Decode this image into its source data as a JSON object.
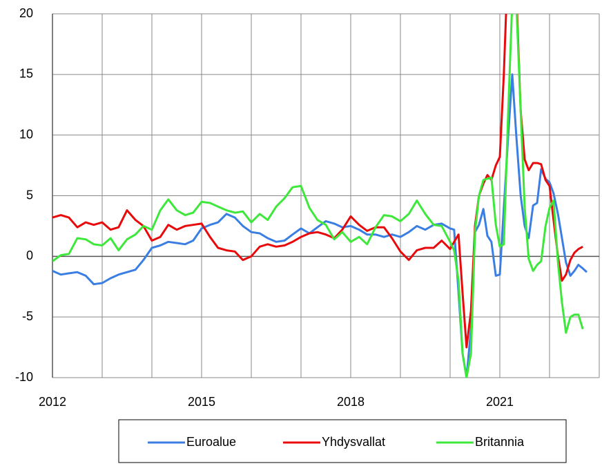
{
  "chart_data": {
    "type": "line",
    "x": [
      2012,
      2012.17,
      2012.33,
      2012.5,
      2012.67,
      2012.83,
      2013,
      2013.17,
      2013.33,
      2013.5,
      2013.67,
      2013.83,
      2014,
      2014.17,
      2014.33,
      2014.5,
      2014.67,
      2014.83,
      2015,
      2015.17,
      2015.33,
      2015.5,
      2015.67,
      2015.83,
      2016,
      2016.17,
      2016.33,
      2016.5,
      2016.67,
      2016.83,
      2017,
      2017.17,
      2017.33,
      2017.5,
      2017.67,
      2017.83,
      2018,
      2018.17,
      2018.33,
      2018.5,
      2018.67,
      2018.83,
      2019,
      2019.17,
      2019.33,
      2019.5,
      2019.67,
      2019.83,
      2020,
      2020.08,
      2020.17,
      2020.25,
      2020.33,
      2020.42,
      2020.5,
      2020.58,
      2020.67,
      2020.75,
      2020.83,
      2020.92,
      2021,
      2021.08,
      2021.17,
      2021.25,
      2021.33,
      2021.42,
      2021.5,
      2021.58,
      2021.67,
      2021.75,
      2021.83,
      2021.92,
      2022,
      2022.08,
      2022.17,
      2022.25,
      2022.33,
      2022.42,
      2022.5,
      2022.58,
      2022.67,
      2022.75
    ],
    "series": [
      {
        "name": "Euroalue",
        "color": "#3a7ee4",
        "values": [
          -1.2,
          -1.5,
          -1.4,
          -1.3,
          -1.6,
          -2.3,
          -2.2,
          -1.8,
          -1.5,
          -1.3,
          -1.1,
          -0.3,
          0.7,
          0.9,
          1.2,
          1.1,
          1.0,
          1.3,
          2.3,
          2.6,
          2.8,
          3.5,
          3.2,
          2.5,
          2.0,
          1.9,
          1.5,
          1.2,
          1.3,
          1.8,
          2.3,
          1.9,
          2.4,
          2.9,
          2.7,
          2.4,
          2.5,
          2.2,
          1.8,
          1.8,
          1.6,
          1.8,
          1.6,
          2.0,
          2.5,
          2.2,
          2.6,
          2.7,
          2.3,
          2.2,
          -3,
          -8,
          -10,
          -6,
          2.0,
          2.6,
          3.9,
          1.7,
          1.2,
          -1.6,
          -1.5,
          4,
          10,
          15,
          10,
          5,
          2.5,
          1.5,
          4.2,
          4.4,
          7.2,
          6.4,
          6.1,
          5.2,
          3.5,
          1.5,
          -0.5,
          -1.6,
          -1.2,
          -0.7,
          -1.0,
          -1.3
        ]
      },
      {
        "name": "Yhdysvallat",
        "color": "#e8090b",
        "values": [
          3.2,
          3.4,
          3.2,
          2.4,
          2.8,
          2.6,
          2.8,
          2.2,
          2.4,
          3.8,
          3.0,
          2.5,
          1.3,
          1.6,
          2.6,
          2.2,
          2.5,
          2.6,
          2.7,
          1.6,
          0.7,
          0.5,
          0.4,
          -0.3,
          0.0,
          0.8,
          1.0,
          0.8,
          0.9,
          1.2,
          1.6,
          1.9,
          2.0,
          1.8,
          1.5,
          2.2,
          3.3,
          2.6,
          2.1,
          2.4,
          2.4,
          1.5,
          0.4,
          -0.3,
          0.5,
          0.7,
          0.7,
          1.3,
          0.6,
          1.2,
          1.8,
          -3,
          -7.5,
          -4.5,
          2.5,
          5.0,
          6.0,
          6.7,
          6.3,
          7.5,
          8.2,
          15,
          25,
          27,
          22,
          12,
          8,
          7.1,
          7.7,
          7.7,
          7.6,
          6.3,
          5.8,
          3.0,
          0.0,
          -2.0,
          -1.5,
          -0.3,
          0.3,
          0.6,
          0.8,
          null
        ]
      },
      {
        "name": "Britannia",
        "color": "#3ee83a",
        "values": [
          -0.4,
          0.1,
          0.2,
          1.5,
          1.4,
          1.0,
          0.9,
          1.5,
          0.5,
          1.4,
          1.8,
          2.5,
          2.2,
          3.8,
          4.7,
          3.8,
          3.4,
          3.6,
          4.5,
          4.4,
          4.1,
          3.8,
          3.6,
          3.7,
          2.8,
          3.5,
          3.0,
          4.1,
          4.8,
          5.7,
          5.8,
          4.0,
          3.0,
          2.6,
          1.4,
          2.0,
          1.2,
          1.6,
          1.0,
          2.4,
          3.4,
          3.3,
          2.9,
          3.5,
          4.6,
          3.5,
          2.6,
          2.5,
          1.2,
          0.5,
          -2,
          -8,
          -10,
          -8,
          2.0,
          5.0,
          6.3,
          6.4,
          6.5,
          2.6,
          0.8,
          1.0,
          12,
          21,
          21,
          12,
          4,
          -0.2,
          -1.2,
          -0.7,
          -0.4,
          2.5,
          4.0,
          4.6,
          -0.5,
          -3.8,
          -6.3,
          -5.0,
          -4.8,
          -4.8,
          -6.0,
          null
        ]
      }
    ],
    "xlim": [
      2012,
      2023
    ],
    "xticks": [
      2012,
      2015,
      2018,
      2021
    ],
    "xgrid": [
      2012,
      2013,
      2014,
      2015,
      2016,
      2017,
      2018,
      2019,
      2020,
      2021,
      2022,
      2023
    ],
    "ylim": [
      -10,
      20
    ],
    "yticks": [
      -10,
      -5,
      0,
      5,
      10,
      15,
      20
    ],
    "grid": true
  }
}
